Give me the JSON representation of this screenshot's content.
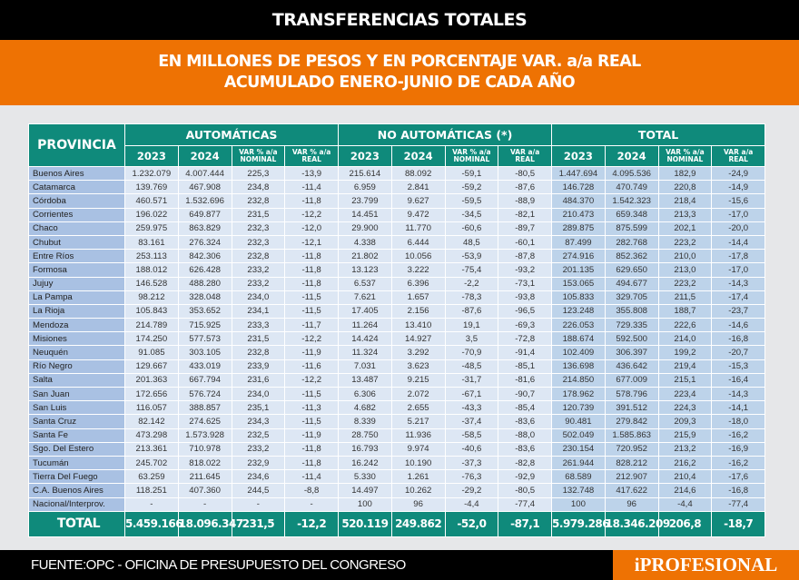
{
  "title": "TRANSFERENCIAS TOTALES",
  "subtitle_line1": "EN MILLONES DE PESOS Y EN PORCENTAJE VAR. a/a REAL",
  "subtitle_line2": "ACUMULADO ENERO-JUNIO DE CADA AÑO",
  "table": {
    "province_header": "PROVINCIA",
    "groups": [
      "AUTOMÁTICAS",
      "NO AUTOMÁTICAS (*)",
      "TOTAL"
    ],
    "columns": [
      "2023",
      "2024",
      "VAR % a/a NOMINAL",
      "VAR % a/a REAL",
      "2023",
      "2024",
      "VAR % a/a NOMINAL",
      "VAR a/a REAL",
      "2023",
      "2024",
      "VAR % a/a NOMINAL",
      "VAR a/a REAL"
    ],
    "rows": [
      [
        "Buenos Aires",
        "1.232.079",
        "4.007.444",
        "225,3",
        "-13,9",
        "215.614",
        "88.092",
        "-59,1",
        "-80,5",
        "1.447.694",
        "4.095.536",
        "182,9",
        "-24,9"
      ],
      [
        "Catamarca",
        "139.769",
        "467.908",
        "234,8",
        "-11,4",
        "6.959",
        "2.841",
        "-59,2",
        "-87,6",
        "146.728",
        "470.749",
        "220,8",
        "-14,9"
      ],
      [
        "Córdoba",
        "460.571",
        "1.532.696",
        "232,8",
        "-11,8",
        "23.799",
        "9.627",
        "-59,5",
        "-88,9",
        "484.370",
        "1.542.323",
        "218,4",
        "-15,6"
      ],
      [
        "Corrientes",
        "196.022",
        "649.877",
        "231,5",
        "-12,2",
        "14.451",
        "9.472",
        "-34,5",
        "-82,1",
        "210.473",
        "659.348",
        "213,3",
        "-17,0"
      ],
      [
        "Chaco",
        "259.975",
        "863.829",
        "232,3",
        "-12,0",
        "29.900",
        "11.770",
        "-60,6",
        "-89,7",
        "289.875",
        "875.599",
        "202,1",
        "-20,0"
      ],
      [
        "Chubut",
        "83.161",
        "276.324",
        "232,3",
        "-12,1",
        "4.338",
        "6.444",
        "48,5",
        "-60,1",
        "87.499",
        "282.768",
        "223,2",
        "-14,4"
      ],
      [
        "Entre Ríos",
        "253.113",
        "842.306",
        "232,8",
        "-11,8",
        "21.802",
        "10.056",
        "-53,9",
        "-87,8",
        "274.916",
        "852.362",
        "210,0",
        "-17,8"
      ],
      [
        "Formosa",
        "188.012",
        "626.428",
        "233,2",
        "-11,8",
        "13.123",
        "3.222",
        "-75,4",
        "-93,2",
        "201.135",
        "629.650",
        "213,0",
        "-17,0"
      ],
      [
        "Jujuy",
        "146.528",
        "488.280",
        "233,2",
        "-11,8",
        "6.537",
        "6.396",
        "-2,2",
        "-73,1",
        "153.065",
        "494.677",
        "223,2",
        "-14,3"
      ],
      [
        "La Pampa",
        "98.212",
        "328.048",
        "234,0",
        "-11,5",
        "7.621",
        "1.657",
        "-78,3",
        "-93,8",
        "105.833",
        "329.705",
        "211,5",
        "-17,4"
      ],
      [
        "La Rioja",
        "105.843",
        "353.652",
        "234,1",
        "-11,5",
        "17.405",
        "2.156",
        "-87,6",
        "-96,5",
        "123.248",
        "355.808",
        "188,7",
        "-23,7"
      ],
      [
        "Mendoza",
        "214.789",
        "715.925",
        "233,3",
        "-11,7",
        "11.264",
        "13.410",
        "19,1",
        "-69,3",
        "226.053",
        "729.335",
        "222,6",
        "-14,6"
      ],
      [
        "Misiones",
        "174.250",
        "577.573",
        "231,5",
        "-12,2",
        "14.424",
        "14.927",
        "3,5",
        "-72,8",
        "188.674",
        "592.500",
        "214,0",
        "-16,8"
      ],
      [
        "Neuquén",
        "91.085",
        "303.105",
        "232,8",
        "-11,9",
        "11.324",
        "3.292",
        "-70,9",
        "-91,4",
        "102.409",
        "306.397",
        "199,2",
        "-20,7"
      ],
      [
        "Río Negro",
        "129.667",
        "433.019",
        "233,9",
        "-11,6",
        "7.031",
        "3.623",
        "-48,5",
        "-85,1",
        "136.698",
        "436.642",
        "219,4",
        "-15,3"
      ],
      [
        "Salta",
        "201.363",
        "667.794",
        "231,6",
        "-12,2",
        "13.487",
        "9.215",
        "-31,7",
        "-81,6",
        "214.850",
        "677.009",
        "215,1",
        "-16,4"
      ],
      [
        "San Juan",
        "172.656",
        "576.724",
        "234,0",
        "-11,5",
        "6.306",
        "2.072",
        "-67,1",
        "-90,7",
        "178.962",
        "578.796",
        "223,4",
        "-14,3"
      ],
      [
        "San Luis",
        "116.057",
        "388.857",
        "235,1",
        "-11,3",
        "4.682",
        "2.655",
        "-43,3",
        "-85,4",
        "120.739",
        "391.512",
        "224,3",
        "-14,1"
      ],
      [
        "Santa Cruz",
        "82.142",
        "274.625",
        "234,3",
        "-11,5",
        "8.339",
        "5.217",
        "-37,4",
        "-83,6",
        "90.481",
        "279.842",
        "209,3",
        "-18,0"
      ],
      [
        "Santa Fe",
        "473.298",
        "1.573.928",
        "232,5",
        "-11,9",
        "28.750",
        "11.936",
        "-58,5",
        "-88,0",
        "502.049",
        "1.585.863",
        "215,9",
        "-16,2"
      ],
      [
        "Sgo. Del Estero",
        "213.361",
        "710.978",
        "233,2",
        "-11,8",
        "16.793",
        "9.974",
        "-40,6",
        "-83,6",
        "230.154",
        "720.952",
        "213,2",
        "-16,9"
      ],
      [
        "Tucumán",
        "245.702",
        "818.022",
        "232,9",
        "-11,8",
        "16.242",
        "10.190",
        "-37,3",
        "-82,8",
        "261.944",
        "828.212",
        "216,2",
        "-16,2"
      ],
      [
        "Tierra Del Fuego",
        "63.259",
        "211.645",
        "234,6",
        "-11,4",
        "5.330",
        "1.261",
        "-76,3",
        "-92,9",
        "68.589",
        "212.907",
        "210,4",
        "-17,6"
      ],
      [
        "C.A. Buenos Aires",
        "118.251",
        "407.360",
        "244,5",
        "-8,8",
        "14.497",
        "10.262",
        "-29,2",
        "-80,5",
        "132.748",
        "417.622",
        "214,6",
        "-16,8"
      ],
      [
        "Nacional/Interprov.",
        "-",
        "-",
        "-",
        "-",
        "100",
        "96",
        "-4,4",
        "-77,4",
        "100",
        "96",
        "-4,4",
        "-77,4"
      ]
    ],
    "total": [
      "TOTAL",
      "5.459.166",
      "18.096.347",
      "231,5",
      "-12,2",
      "520.119",
      "249.862",
      "-52,0",
      "-87,1",
      "5.979.286",
      "18.346.209",
      "206,8",
      "-18,7"
    ]
  },
  "footer": {
    "source": "FUENTE:OPC - OFICINA DE PRESUPUESTO DEL CONGRESO",
    "logo": "iPROFESIONAL"
  },
  "colors": {
    "header": "#000000",
    "accent": "#ee7203",
    "table_header": "#0f8a7b",
    "province_cell": "#a9c1e3",
    "value_cell": "#dde7f4",
    "total_cell": "#bdd3ea"
  }
}
